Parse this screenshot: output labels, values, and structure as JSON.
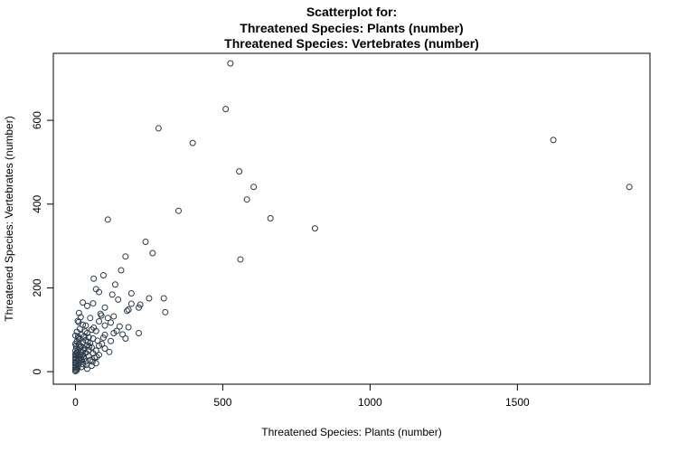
{
  "chart_data": {
    "type": "scatter",
    "title_lines": [
      "Scatterplot for:",
      "Threatened Species: Plants (number)",
      "Threatened Species: Vertebrates (number)"
    ],
    "xlabel": "Threatened Species: Plants (number)",
    "ylabel": "Threatened Species: Vertebrates (number)",
    "xlim": [
      -75,
      1950
    ],
    "ylim": [
      -30,
      760
    ],
    "xticks": [
      0,
      500,
      1000,
      1500
    ],
    "yticks": [
      0,
      200,
      400,
      600
    ],
    "grid": false,
    "legend": "none",
    "colors": {
      "marker_stroke": "#2b3a4a"
    },
    "points": [
      {
        "x": 526,
        "y": 736
      },
      {
        "x": 510,
        "y": 627
      },
      {
        "x": 282,
        "y": 581
      },
      {
        "x": 1622,
        "y": 553
      },
      {
        "x": 398,
        "y": 546
      },
      {
        "x": 556,
        "y": 478
      },
      {
        "x": 605,
        "y": 441
      },
      {
        "x": 1880,
        "y": 441
      },
      {
        "x": 582,
        "y": 411
      },
      {
        "x": 350,
        "y": 384
      },
      {
        "x": 662,
        "y": 366
      },
      {
        "x": 110,
        "y": 363
      },
      {
        "x": 813,
        "y": 342
      },
      {
        "x": 238,
        "y": 310
      },
      {
        "x": 262,
        "y": 283
      },
      {
        "x": 170,
        "y": 275
      },
      {
        "x": 560,
        "y": 268
      },
      {
        "x": 155,
        "y": 242
      },
      {
        "x": 95,
        "y": 230
      },
      {
        "x": 62,
        "y": 222
      },
      {
        "x": 135,
        "y": 208
      },
      {
        "x": 70,
        "y": 197
      },
      {
        "x": 80,
        "y": 190
      },
      {
        "x": 190,
        "y": 187
      },
      {
        "x": 125,
        "y": 184
      },
      {
        "x": 250,
        "y": 175
      },
      {
        "x": 300,
        "y": 175
      },
      {
        "x": 145,
        "y": 172
      },
      {
        "x": 25,
        "y": 165
      },
      {
        "x": 60,
        "y": 163
      },
      {
        "x": 190,
        "y": 162
      },
      {
        "x": 220,
        "y": 160
      },
      {
        "x": 40,
        "y": 157
      },
      {
        "x": 100,
        "y": 153
      },
      {
        "x": 215,
        "y": 153
      },
      {
        "x": 180,
        "y": 148
      },
      {
        "x": 175,
        "y": 145
      },
      {
        "x": 305,
        "y": 142
      },
      {
        "x": 85,
        "y": 138
      },
      {
        "x": 130,
        "y": 132
      },
      {
        "x": 18,
        "y": 130
      },
      {
        "x": 50,
        "y": 128
      },
      {
        "x": 110,
        "y": 128
      },
      {
        "x": 8,
        "y": 121
      },
      {
        "x": 80,
        "y": 120
      },
      {
        "x": 120,
        "y": 117
      },
      {
        "x": 25,
        "y": 112
      },
      {
        "x": 35,
        "y": 110
      },
      {
        "x": 100,
        "y": 110
      },
      {
        "x": 150,
        "y": 108
      },
      {
        "x": 180,
        "y": 106
      },
      {
        "x": 15,
        "y": 102
      },
      {
        "x": 55,
        "y": 100
      },
      {
        "x": 70,
        "y": 97
      },
      {
        "x": 140,
        "y": 97
      },
      {
        "x": 5,
        "y": 95
      },
      {
        "x": 40,
        "y": 92
      },
      {
        "x": 130,
        "y": 92
      },
      {
        "x": 215,
        "y": 92
      },
      {
        "x": 160,
        "y": 89
      },
      {
        "x": 20,
        "y": 88
      },
      {
        "x": 100,
        "y": 88
      },
      {
        "x": 0,
        "y": 86
      },
      {
        "x": 30,
        "y": 84
      },
      {
        "x": 45,
        "y": 82
      },
      {
        "x": 95,
        "y": 81
      },
      {
        "x": 10,
        "y": 80
      },
      {
        "x": 60,
        "y": 79
      },
      {
        "x": 170,
        "y": 79
      },
      {
        "x": 15,
        "y": 77
      },
      {
        "x": 35,
        "y": 75
      },
      {
        "x": 75,
        "y": 74
      },
      {
        "x": 5,
        "y": 72
      },
      {
        "x": 25,
        "y": 70
      },
      {
        "x": 50,
        "y": 68
      },
      {
        "x": 0,
        "y": 66
      },
      {
        "x": 12,
        "y": 65
      },
      {
        "x": 40,
        "y": 63
      },
      {
        "x": 80,
        "y": 62
      },
      {
        "x": 20,
        "y": 60
      },
      {
        "x": 55,
        "y": 58
      },
      {
        "x": 3,
        "y": 57
      },
      {
        "x": 30,
        "y": 55
      },
      {
        "x": 100,
        "y": 55
      },
      {
        "x": 10,
        "y": 53
      },
      {
        "x": 45,
        "y": 52
      },
      {
        "x": 0,
        "y": 50
      },
      {
        "x": 70,
        "y": 50
      },
      {
        "x": 20,
        "y": 48
      },
      {
        "x": 115,
        "y": 47
      },
      {
        "x": 5,
        "y": 46
      },
      {
        "x": 35,
        "y": 45
      },
      {
        "x": 60,
        "y": 44
      },
      {
        "x": 0,
        "y": 42
      },
      {
        "x": 15,
        "y": 41
      },
      {
        "x": 25,
        "y": 40
      },
      {
        "x": 80,
        "y": 40
      },
      {
        "x": 8,
        "y": 38
      },
      {
        "x": 45,
        "y": 37
      },
      {
        "x": 0,
        "y": 35
      },
      {
        "x": 18,
        "y": 34
      },
      {
        "x": 65,
        "y": 33
      },
      {
        "x": 3,
        "y": 32
      },
      {
        "x": 30,
        "y": 31
      },
      {
        "x": 10,
        "y": 29
      },
      {
        "x": 0,
        "y": 28
      },
      {
        "x": 50,
        "y": 28
      },
      {
        "x": 22,
        "y": 27
      },
      {
        "x": 5,
        "y": 25
      },
      {
        "x": 35,
        "y": 24
      },
      {
        "x": 0,
        "y": 22
      },
      {
        "x": 14,
        "y": 21
      },
      {
        "x": 70,
        "y": 20
      },
      {
        "x": 3,
        "y": 19
      },
      {
        "x": 25,
        "y": 18
      },
      {
        "x": 0,
        "y": 16
      },
      {
        "x": 10,
        "y": 15
      },
      {
        "x": 55,
        "y": 14
      },
      {
        "x": 2,
        "y": 12
      },
      {
        "x": 20,
        "y": 11
      },
      {
        "x": 0,
        "y": 9
      },
      {
        "x": 7,
        "y": 8
      },
      {
        "x": 40,
        "y": 7
      },
      {
        "x": 0,
        "y": 5
      },
      {
        "x": 4,
        "y": 3
      },
      {
        "x": 0,
        "y": 1
      },
      {
        "x": 12,
        "y": 30
      },
      {
        "x": 28,
        "y": 36
      },
      {
        "x": 6,
        "y": 44
      },
      {
        "x": 16,
        "y": 58
      },
      {
        "x": 2,
        "y": 62
      },
      {
        "x": 42,
        "y": 71
      },
      {
        "x": 9,
        "y": 84
      },
      {
        "x": 33,
        "y": 96
      },
      {
        "x": 62,
        "y": 105
      },
      {
        "x": 88,
        "y": 134
      },
      {
        "x": 12,
        "y": 140
      },
      {
        "x": 47,
        "y": 60
      },
      {
        "x": 72,
        "y": 35
      },
      {
        "x": 90,
        "y": 66
      },
      {
        "x": 120,
        "y": 73
      },
      {
        "x": 38,
        "y": 16
      },
      {
        "x": 58,
        "y": 24
      },
      {
        "x": 1,
        "y": 39
      },
      {
        "x": 27,
        "y": 51
      },
      {
        "x": 11,
        "y": 118
      }
    ]
  }
}
